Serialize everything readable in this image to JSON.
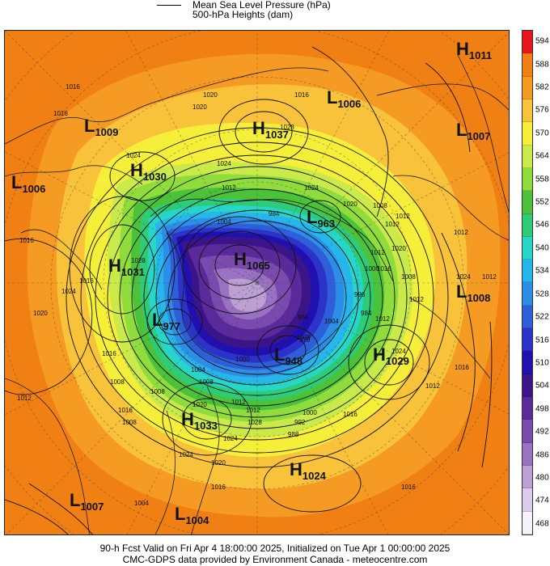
{
  "header": {
    "legend_line_label": "Mean Sea Level Pressure (hPa)",
    "legend_fill_label": "500-hPa Heights (dam)"
  },
  "footer": {
    "line1": "90-h Fcst Valid on Fri Apr  4 18:00:00 2025, Initialized on Tue Apr  1 00:00:00 2025",
    "line2": "CMC-GDPS data provided by Environment Canada - meteocentre.com"
  },
  "colorbar": {
    "ticks": [
      "594",
      "588",
      "582",
      "576",
      "570",
      "564",
      "558",
      "552",
      "546",
      "540",
      "534",
      "528",
      "522",
      "516",
      "510",
      "504",
      "498",
      "492",
      "486",
      "480",
      "474",
      "468"
    ],
    "colors": [
      "#e8141c",
      "#f07f14",
      "#f59a22",
      "#f8c23a",
      "#f5ef3a",
      "#c9ea4a",
      "#8fdc3c",
      "#4cc23a",
      "#2ecb78",
      "#26d6c8",
      "#27b6ec",
      "#2d8ee8",
      "#2f5fd8",
      "#2c33c8",
      "#2010b0",
      "#3b148a",
      "#5a2a9a",
      "#7a4aae",
      "#9a72c2",
      "#bca0d4",
      "#dccdea",
      "#f5f2fa"
    ]
  },
  "pressure_centers": [
    {
      "type": "H",
      "value": "1011"
    },
    {
      "type": "L",
      "value": "1006"
    },
    {
      "type": "L",
      "value": "1009"
    },
    {
      "type": "H",
      "value": "1037"
    },
    {
      "type": "L",
      "value": "1007"
    },
    {
      "type": "H",
      "value": "1030"
    },
    {
      "type": "L",
      "value": "1006"
    },
    {
      "type": "L",
      "value": "963"
    },
    {
      "type": "H",
      "value": "1031"
    },
    {
      "type": "H",
      "value": "1065"
    },
    {
      "type": "L",
      "value": "1008"
    },
    {
      "type": "L",
      "value": "977"
    },
    {
      "type": "L",
      "value": "948"
    },
    {
      "type": "H",
      "value": "1029"
    },
    {
      "type": "H",
      "value": "1033"
    },
    {
      "type": "H",
      "value": "1024"
    },
    {
      "type": "L",
      "value": "1007"
    },
    {
      "type": "L",
      "value": "1004"
    }
  ],
  "isobar_labels": [
    "1016",
    "1020",
    "1016",
    "1020",
    "1028",
    "1016",
    "1024",
    "1012",
    "1024",
    "1004",
    "984",
    "1020",
    "1012",
    "1008",
    "1012",
    "1016",
    "1020",
    "1024",
    "1028",
    "1016",
    "1012",
    "1016",
    "1008",
    "1012",
    "1024",
    "1016",
    "1012",
    "1000",
    "984",
    "1004",
    "1008",
    "996",
    "1012",
    "1004",
    "1008",
    "1012",
    "1016",
    "1020",
    "1024",
    "1008",
    "1008",
    "1012",
    "1020",
    "984",
    "976",
    "1000",
    "1024",
    "1016",
    "1000",
    "1012",
    "1028",
    "1024",
    "988",
    "992",
    "1016",
    "1012",
    "1020",
    "1024",
    "1016",
    "1012",
    "1008",
    "1016",
    "1004"
  ]
}
